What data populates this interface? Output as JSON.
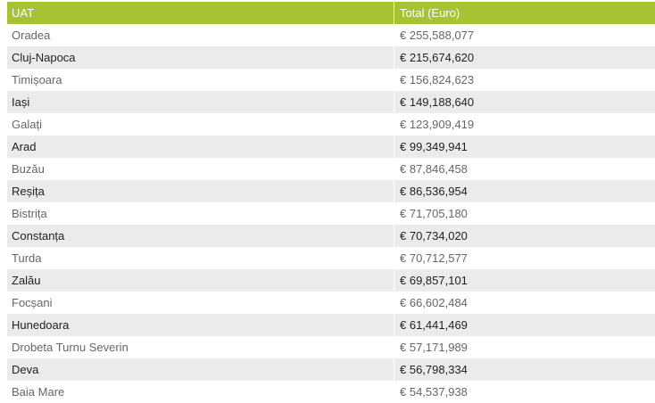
{
  "table": {
    "headers": [
      "UAT",
      "Total (Euro)"
    ],
    "rows": [
      [
        "Oradea",
        "€ 255,588,077"
      ],
      [
        "Cluj-Napoca",
        "€ 215,674,620"
      ],
      [
        "Timișoara",
        "€ 156,824,623"
      ],
      [
        "Iași",
        "€ 149,188,640"
      ],
      [
        "Galați",
        "€ 123,909,419"
      ],
      [
        "Arad",
        "€ 99,349,941"
      ],
      [
        "Buzău",
        "€ 87,846,458"
      ],
      [
        "Reșița",
        "€ 86,536,954"
      ],
      [
        "Bistrița",
        "€ 71,705,180"
      ],
      [
        "Constanța",
        "€ 70,734,020"
      ],
      [
        "Turda",
        "€ 70,712,577"
      ],
      [
        "Zalău",
        "€ 69,857,101"
      ],
      [
        "Focșani",
        "€ 66,602,484"
      ],
      [
        "Hunedoara",
        "€ 61,441,469"
      ],
      [
        "Drobeta Turnu Severin",
        "€ 57,171,989"
      ],
      [
        "Deva",
        "€ 56,798,334"
      ],
      [
        "Baia Mare",
        "€ 54,537,938"
      ]
    ]
  },
  "colors": {
    "header_bg": "#a6c336",
    "header_text": "#ffffff",
    "stripe_bg": "#ebebeb"
  }
}
